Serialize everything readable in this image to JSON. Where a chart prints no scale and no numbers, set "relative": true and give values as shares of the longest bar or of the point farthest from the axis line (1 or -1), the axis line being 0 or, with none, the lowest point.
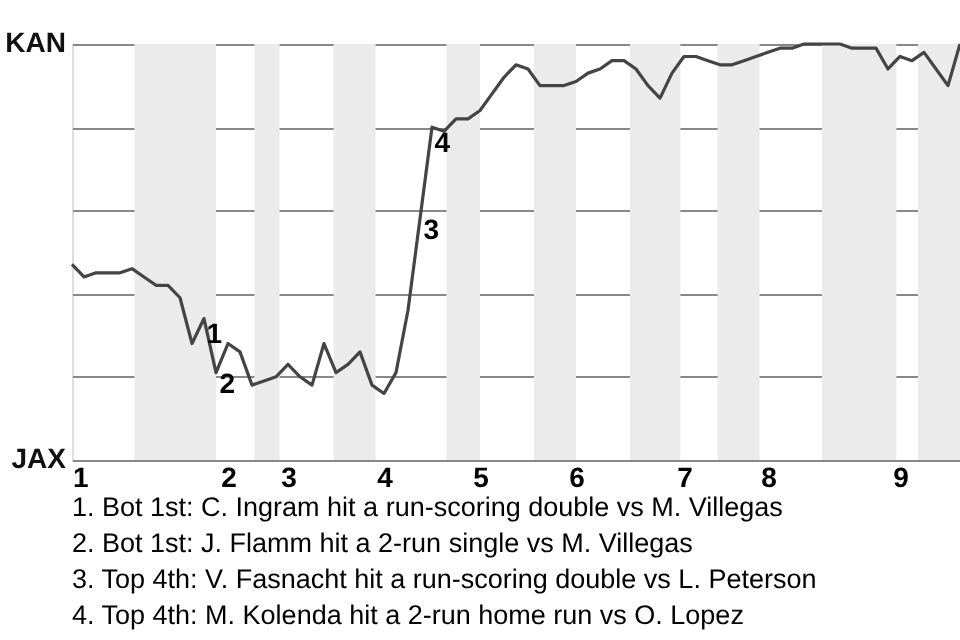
{
  "chart_data": {
    "type": "line",
    "categories": [
      "1",
      null,
      null,
      null,
      null,
      null,
      null,
      null,
      null,
      null,
      null,
      null,
      null,
      "2",
      null,
      null,
      null,
      null,
      "3",
      null,
      null,
      null,
      null,
      null,
      null,
      null,
      "4",
      null,
      null,
      null,
      null,
      null,
      null,
      null,
      "5",
      null,
      null,
      null,
      null,
      null,
      null,
      null,
      "6",
      null,
      null,
      null,
      null,
      null,
      null,
      null,
      null,
      "7",
      null,
      null,
      null,
      null,
      null,
      null,
      "8",
      null,
      null,
      null,
      null,
      null,
      null,
      null,
      null,
      null,
      null,
      "9",
      null,
      null,
      null,
      null,
      null
    ],
    "relative": true,
    "series": [
      {
        "color": "#444444",
        "values": [
          0.47,
          0.44,
          0.45,
          0.45,
          0.45,
          0.46,
          0.44,
          0.42,
          0.42,
          0.39,
          0.28,
          0.34,
          0.21,
          0.28,
          0.26,
          0.18,
          0.19,
          0.2,
          0.23,
          0.2,
          0.18,
          0.28,
          0.21,
          0.23,
          0.26,
          0.18,
          0.16,
          0.21,
          0.36,
          0.58,
          0.8,
          0.79,
          0.82,
          0.82,
          0.84,
          0.88,
          0.92,
          0.95,
          0.94,
          0.9,
          0.9,
          0.9,
          0.91,
          0.93,
          0.94,
          0.96,
          0.96,
          0.94,
          0.9,
          0.87,
          0.93,
          0.97,
          0.97,
          0.96,
          0.95,
          0.95,
          0.96,
          0.97,
          0.98,
          0.99,
          0.99,
          1.0,
          1.0,
          1.0,
          1.0,
          0.99,
          0.99,
          0.99,
          0.94,
          0.97,
          0.96,
          0.98,
          0.94,
          0.9,
          1.0
        ]
      }
    ],
    "grid": "y",
    "annotations": [
      "KAN",
      "JAX",
      "1",
      "2",
      "3",
      "4",
      "1. Bot 1st: C. Ingram hit a run-scoring double vs M. Villegas",
      "2. Bot 1st: J. Flamm hit a 2-run single vs M. Villegas",
      "3. Top 4th: V. Fasnacht hit a run-scoring double vs L. Peterson",
      "4. Top 4th: M. Kolenda hit a 2-run home run vs O. Lopez"
    ]
  }
}
